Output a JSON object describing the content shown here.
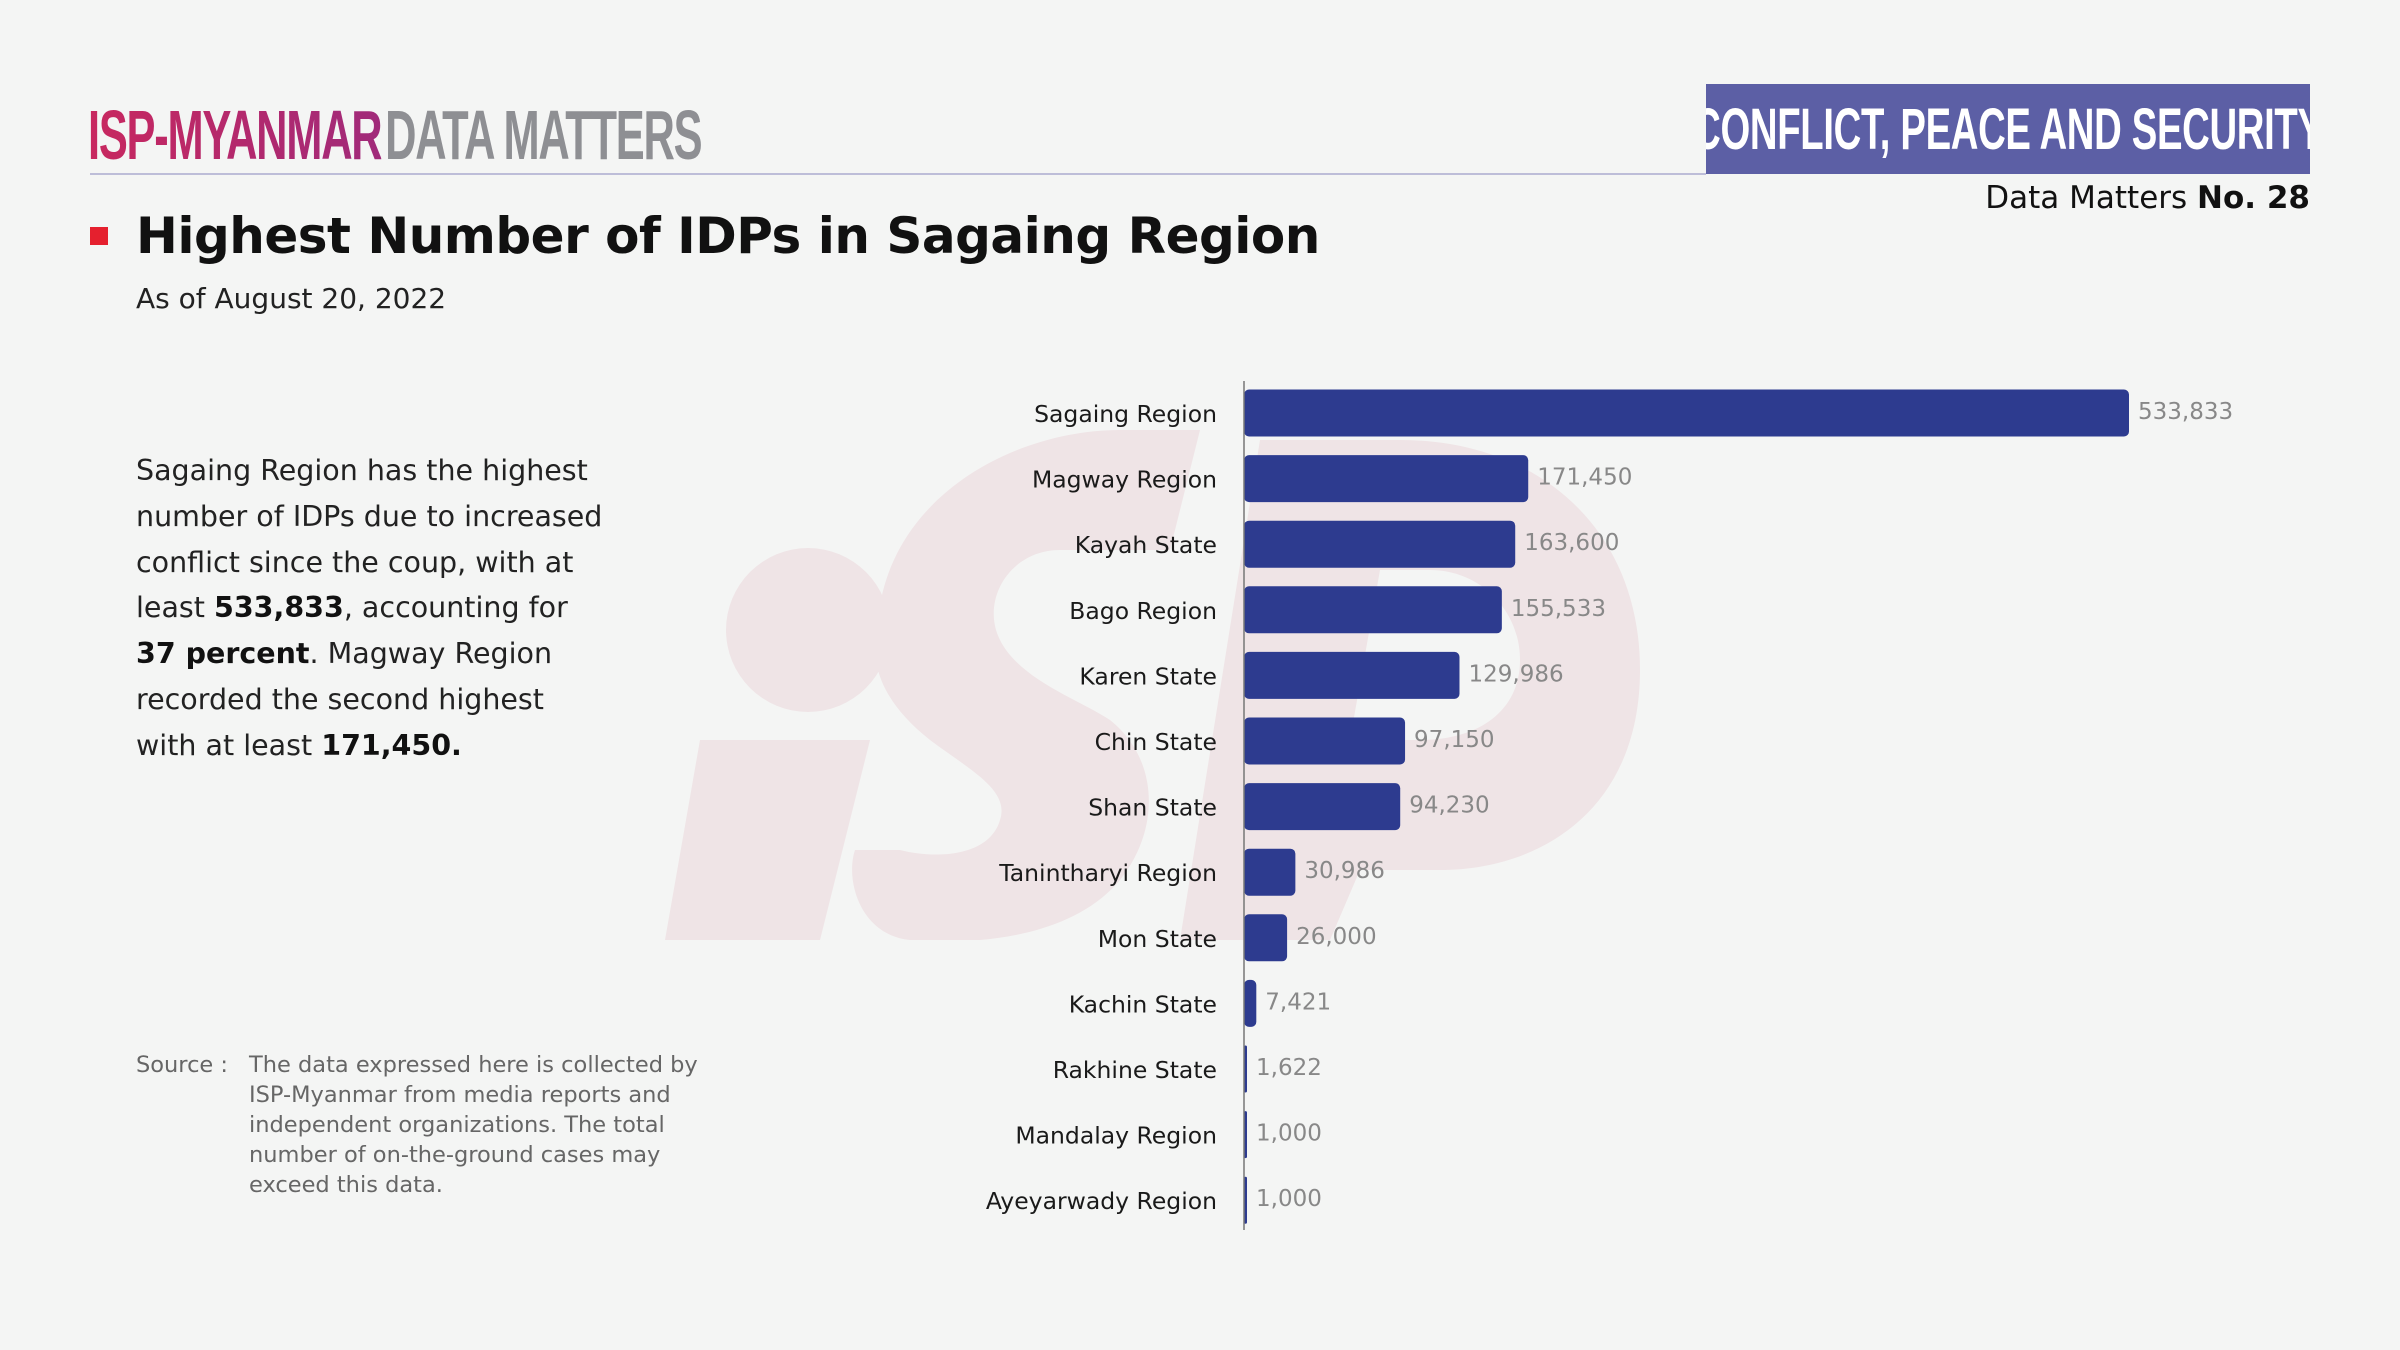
{
  "header": {
    "brand_primary": "ISP-MYANMAR",
    "brand_secondary": "DATA MATTERS",
    "category": "CONFLICT, PEACE AND SECURITY",
    "issue_prefix": "Data Matters",
    "issue_number": "No. 28"
  },
  "colors": {
    "brand_magenta": "#c8285f",
    "brand_gray": "#8e8f93",
    "category_box": "#5c5fa5",
    "bar": "#2d3b8f",
    "title_marker": "#e5202e",
    "watermark": "#efe4e6"
  },
  "content": {
    "title": "Highest Number of IDPs in Sagaing Region",
    "subtitle": "As of August 20, 2022",
    "paragraph": {
      "part1": "Sagaing Region has the highest number of IDPs due to increased conflict since the coup, with at least ",
      "bold1": "533,833",
      "part2": ", accounting for ",
      "bold2": "37 percent",
      "part3": ". Magway Region recorded the second highest with at least ",
      "bold3": "171,450."
    },
    "source_label": "Source :",
    "source_text": "The data expressed here is collected by ISP-Myanmar from media reports and independent organizations. The total number of on-the-ground cases may exceed this data."
  },
  "chart_data": {
    "type": "bar",
    "orientation": "horizontal",
    "title": "Highest Number of IDPs in Sagaing Region",
    "subtitle": "As of August 20, 2022",
    "xlabel": "",
    "ylabel": "",
    "grid": false,
    "legend": "none",
    "xlim": [
      0,
      533833
    ],
    "categories": [
      "Sagaing Region",
      "Magway Region",
      "Kayah State",
      "Bago Region",
      "Karen State",
      "Chin State",
      "Shan State",
      "Tanintharyi Region",
      "Mon State",
      "Kachin State",
      "Rakhine State",
      "Mandalay Region",
      "Ayeyarwady Region"
    ],
    "values": [
      533833,
      171450,
      163600,
      155533,
      129986,
      97150,
      94230,
      30986,
      26000,
      7421,
      1622,
      1000,
      1000
    ],
    "value_labels": [
      "533,833",
      "171,450",
      "163,600",
      "155,533",
      "129,986",
      "97,150",
      "94,230",
      "30,986",
      "26,000",
      "7,421",
      "1,622",
      "1,000",
      "1,000"
    ]
  }
}
